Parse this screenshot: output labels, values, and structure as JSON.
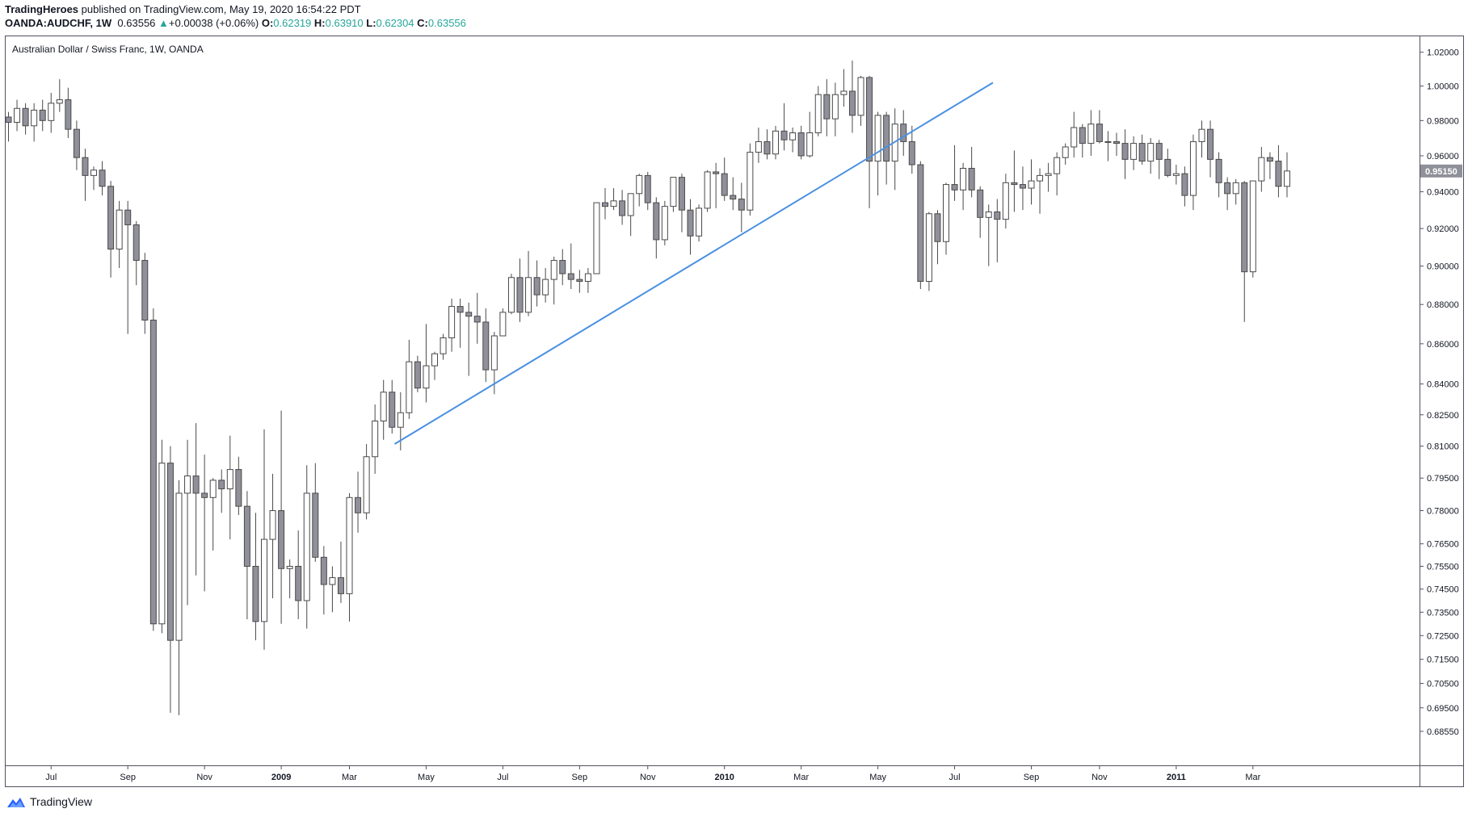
{
  "header": {
    "publisher": "TradingHeroes",
    "published_text": "published on TradingView.com, May 19, 2020 16:54:22 PDT",
    "symbol": "OANDA:AUDCHF, 1W",
    "last": "0.63556",
    "change_arrow": "▲",
    "change": "+0.00038 (+0.06%)",
    "o_label": "O:",
    "o_value": "0.62319",
    "h_label": "H:",
    "h_value": "0.63910",
    "l_label": "L:",
    "l_value": "0.62304",
    "c_label": "C:",
    "c_value": "0.63556"
  },
  "footer": {
    "brand": "TradingView"
  },
  "colors": {
    "up_body": "#ffffff",
    "down_body": "#8f909a",
    "wick": "#4a4a4a",
    "trendline": "#4a90e2",
    "price_tag": "#8f909a",
    "change_up": "#26a69a"
  },
  "chart_data": {
    "type": "candlestick",
    "title": "Australian Dollar / Swiss Franc, 1W, OANDA",
    "ylim": [
      0.672,
      1.03
    ],
    "y_scale": "log",
    "y_ticks": [
      "1.02000",
      "1.00000",
      "0.98000",
      "0.96000",
      "0.94000",
      "0.92000",
      "0.90000",
      "0.88000",
      "0.86000",
      "0.84000",
      "0.82500",
      "0.81000",
      "0.79500",
      "0.78000",
      "0.76500",
      "0.75500",
      "0.74500",
      "0.73500",
      "0.72500",
      "0.71500",
      "0.70500",
      "0.69500",
      "0.68550"
    ],
    "x_ticks": [
      {
        "label": "Jul",
        "index": 5,
        "bold": false
      },
      {
        "label": "Sep",
        "index": 14,
        "bold": false
      },
      {
        "label": "Nov",
        "index": 23,
        "bold": false
      },
      {
        "label": "2009",
        "index": 32,
        "bold": true
      },
      {
        "label": "Mar",
        "index": 40,
        "bold": false
      },
      {
        "label": "May",
        "index": 49,
        "bold": false
      },
      {
        "label": "Jul",
        "index": 58,
        "bold": false
      },
      {
        "label": "Sep",
        "index": 67,
        "bold": false
      },
      {
        "label": "Nov",
        "index": 75,
        "bold": false
      },
      {
        "label": "2010",
        "index": 84,
        "bold": true
      },
      {
        "label": "Mar",
        "index": 93,
        "bold": false
      },
      {
        "label": "May",
        "index": 102,
        "bold": false
      },
      {
        "label": "Jul",
        "index": 111,
        "bold": false
      },
      {
        "label": "Sep",
        "index": 120,
        "bold": false
      },
      {
        "label": "Nov",
        "index": 128,
        "bold": false
      },
      {
        "label": "2011",
        "index": 137,
        "bold": true
      },
      {
        "label": "Mar",
        "index": 146,
        "bold": false
      }
    ],
    "last_price_label": "0.95150",
    "last_price": 0.9515,
    "trendline": {
      "start": {
        "index": 45.3,
        "price": 0.811
      },
      "end": {
        "index": 115.5,
        "price": 1.002
      }
    },
    "candles": [
      [
        0.982,
        0.985,
        0.968,
        0.979
      ],
      [
        0.979,
        0.992,
        0.974,
        0.987
      ],
      [
        0.987,
        0.99,
        0.972,
        0.977
      ],
      [
        0.977,
        0.99,
        0.968,
        0.986
      ],
      [
        0.986,
        0.992,
        0.974,
        0.98
      ],
      [
        0.98,
        0.996,
        0.973,
        0.99
      ],
      [
        0.99,
        1.004,
        0.985,
        0.992
      ],
      [
        0.992,
        0.999,
        0.97,
        0.975
      ],
      [
        0.975,
        0.98,
        0.952,
        0.959
      ],
      [
        0.959,
        0.964,
        0.935,
        0.949
      ],
      [
        0.949,
        0.954,
        0.941,
        0.952
      ],
      [
        0.952,
        0.957,
        0.938,
        0.943
      ],
      [
        0.943,
        0.946,
        0.894,
        0.909
      ],
      [
        0.909,
        0.935,
        0.899,
        0.93
      ],
      [
        0.93,
        0.935,
        0.865,
        0.922
      ],
      [
        0.922,
        0.924,
        0.89,
        0.903
      ],
      [
        0.903,
        0.907,
        0.865,
        0.872
      ],
      [
        0.872,
        0.878,
        0.727,
        0.73
      ],
      [
        0.73,
        0.813,
        0.726,
        0.802
      ],
      [
        0.802,
        0.81,
        0.693,
        0.723
      ],
      [
        0.723,
        0.794,
        0.692,
        0.788
      ],
      [
        0.788,
        0.813,
        0.738,
        0.796
      ],
      [
        0.796,
        0.821,
        0.751,
        0.788
      ],
      [
        0.788,
        0.806,
        0.744,
        0.786
      ],
      [
        0.786,
        0.795,
        0.762,
        0.794
      ],
      [
        0.794,
        0.799,
        0.779,
        0.79
      ],
      [
        0.79,
        0.815,
        0.767,
        0.799
      ],
      [
        0.799,
        0.805,
        0.778,
        0.782
      ],
      [
        0.782,
        0.789,
        0.732,
        0.755
      ],
      [
        0.755,
        0.779,
        0.723,
        0.731
      ],
      [
        0.731,
        0.818,
        0.719,
        0.767
      ],
      [
        0.767,
        0.797,
        0.741,
        0.78
      ],
      [
        0.78,
        0.827,
        0.73,
        0.754
      ],
      [
        0.754,
        0.758,
        0.741,
        0.755
      ],
      [
        0.755,
        0.771,
        0.732,
        0.74
      ],
      [
        0.74,
        0.801,
        0.728,
        0.788
      ],
      [
        0.788,
        0.802,
        0.757,
        0.759
      ],
      [
        0.759,
        0.764,
        0.734,
        0.747
      ],
      [
        0.747,
        0.755,
        0.735,
        0.75
      ],
      [
        0.75,
        0.766,
        0.739,
        0.743
      ],
      [
        0.743,
        0.788,
        0.731,
        0.786
      ],
      [
        0.786,
        0.798,
        0.77,
        0.779
      ],
      [
        0.779,
        0.811,
        0.776,
        0.805
      ],
      [
        0.805,
        0.83,
        0.797,
        0.822
      ],
      [
        0.822,
        0.842,
        0.813,
        0.836
      ],
      [
        0.836,
        0.842,
        0.816,
        0.819
      ],
      [
        0.819,
        0.836,
        0.808,
        0.826
      ],
      [
        0.826,
        0.862,
        0.823,
        0.851
      ],
      [
        0.851,
        0.854,
        0.836,
        0.838
      ],
      [
        0.838,
        0.87,
        0.831,
        0.849
      ],
      [
        0.849,
        0.856,
        0.842,
        0.855
      ],
      [
        0.855,
        0.865,
        0.852,
        0.863
      ],
      [
        0.863,
        0.883,
        0.856,
        0.879
      ],
      [
        0.879,
        0.883,
        0.858,
        0.876
      ],
      [
        0.876,
        0.881,
        0.844,
        0.874
      ],
      [
        0.874,
        0.886,
        0.86,
        0.871
      ],
      [
        0.871,
        0.878,
        0.841,
        0.847
      ],
      [
        0.847,
        0.866,
        0.835,
        0.864
      ],
      [
        0.864,
        0.878,
        0.864,
        0.876
      ],
      [
        0.876,
        0.896,
        0.875,
        0.894
      ],
      [
        0.894,
        0.904,
        0.871,
        0.876
      ],
      [
        0.876,
        0.908,
        0.874,
        0.894
      ],
      [
        0.894,
        0.903,
        0.879,
        0.885
      ],
      [
        0.885,
        0.899,
        0.881,
        0.893
      ],
      [
        0.893,
        0.905,
        0.88,
        0.903
      ],
      [
        0.903,
        0.909,
        0.89,
        0.896
      ],
      [
        0.896,
        0.912,
        0.888,
        0.893
      ],
      [
        0.893,
        0.898,
        0.886,
        0.892
      ],
      [
        0.892,
        0.899,
        0.886,
        0.896
      ],
      [
        0.896,
        0.934,
        0.896,
        0.934
      ],
      [
        0.934,
        0.942,
        0.925,
        0.932
      ],
      [
        0.932,
        0.942,
        0.93,
        0.935
      ],
      [
        0.935,
        0.941,
        0.922,
        0.927
      ],
      [
        0.927,
        0.939,
        0.916,
        0.939
      ],
      [
        0.939,
        0.95,
        0.932,
        0.949
      ],
      [
        0.949,
        0.951,
        0.93,
        0.934
      ],
      [
        0.934,
        0.937,
        0.904,
        0.914
      ],
      [
        0.914,
        0.935,
        0.911,
        0.932
      ],
      [
        0.932,
        0.948,
        0.929,
        0.948
      ],
      [
        0.948,
        0.95,
        0.918,
        0.93
      ],
      [
        0.93,
        0.936,
        0.906,
        0.916
      ],
      [
        0.916,
        0.933,
        0.913,
        0.931
      ],
      [
        0.931,
        0.952,
        0.929,
        0.951
      ],
      [
        0.951,
        0.956,
        0.931,
        0.95
      ],
      [
        0.95,
        0.959,
        0.935,
        0.938
      ],
      [
        0.938,
        0.948,
        0.93,
        0.936
      ],
      [
        0.936,
        0.945,
        0.918,
        0.93
      ],
      [
        0.93,
        0.967,
        0.927,
        0.962
      ],
      [
        0.962,
        0.976,
        0.956,
        0.968
      ],
      [
        0.968,
        0.975,
        0.958,
        0.961
      ],
      [
        0.961,
        0.977,
        0.958,
        0.974
      ],
      [
        0.974,
        0.99,
        0.963,
        0.969
      ],
      [
        0.969,
        0.976,
        0.962,
        0.973
      ],
      [
        0.973,
        0.977,
        0.958,
        0.96
      ],
      [
        0.96,
        0.985,
        0.959,
        0.973
      ],
      [
        0.973,
        1.0,
        0.971,
        0.995
      ],
      [
        0.995,
        1.004,
        0.971,
        0.981
      ],
      [
        0.981,
        1.002,
        0.971,
        0.995
      ],
      [
        0.995,
        1.01,
        0.988,
        0.997
      ],
      [
        0.997,
        1.015,
        0.973,
        0.983
      ],
      [
        0.983,
        1.006,
        0.977,
        1.005
      ],
      [
        1.005,
        1.006,
        0.931,
        0.957
      ],
      [
        0.957,
        0.985,
        0.938,
        0.983
      ],
      [
        0.983,
        0.985,
        0.944,
        0.957
      ],
      [
        0.957,
        0.987,
        0.941,
        0.978
      ],
      [
        0.978,
        0.986,
        0.96,
        0.968
      ],
      [
        0.968,
        0.977,
        0.95,
        0.955
      ],
      [
        0.955,
        0.957,
        0.888,
        0.892
      ],
      [
        0.892,
        0.929,
        0.887,
        0.928
      ],
      [
        0.928,
        0.93,
        0.901,
        0.913
      ],
      [
        0.913,
        0.945,
        0.906,
        0.944
      ],
      [
        0.944,
        0.966,
        0.935,
        0.941
      ],
      [
        0.941,
        0.956,
        0.93,
        0.953
      ],
      [
        0.953,
        0.965,
        0.937,
        0.941
      ],
      [
        0.941,
        0.943,
        0.915,
        0.926
      ],
      [
        0.926,
        0.933,
        0.9,
        0.929
      ],
      [
        0.929,
        0.936,
        0.902,
        0.925
      ],
      [
        0.925,
        0.95,
        0.92,
        0.945
      ],
      [
        0.945,
        0.963,
        0.929,
        0.944
      ],
      [
        0.944,
        0.954,
        0.93,
        0.942
      ],
      [
        0.942,
        0.958,
        0.933,
        0.946
      ],
      [
        0.946,
        0.953,
        0.928,
        0.949
      ],
      [
        0.949,
        0.956,
        0.94,
        0.95
      ],
      [
        0.95,
        0.962,
        0.938,
        0.959
      ],
      [
        0.959,
        0.967,
        0.955,
        0.965
      ],
      [
        0.965,
        0.985,
        0.959,
        0.976
      ],
      [
        0.976,
        0.978,
        0.959,
        0.967
      ],
      [
        0.967,
        0.986,
        0.96,
        0.978
      ],
      [
        0.978,
        0.986,
        0.967,
        0.968
      ],
      [
        0.968,
        0.974,
        0.957,
        0.968
      ],
      [
        0.968,
        0.973,
        0.96,
        0.967
      ],
      [
        0.967,
        0.975,
        0.947,
        0.958
      ],
      [
        0.958,
        0.971,
        0.952,
        0.967
      ],
      [
        0.967,
        0.972,
        0.955,
        0.957
      ],
      [
        0.957,
        0.97,
        0.95,
        0.967
      ],
      [
        0.967,
        0.969,
        0.947,
        0.958
      ],
      [
        0.958,
        0.964,
        0.948,
        0.949
      ],
      [
        0.949,
        0.955,
        0.944,
        0.95
      ],
      [
        0.95,
        0.954,
        0.932,
        0.938
      ],
      [
        0.938,
        0.972,
        0.93,
        0.968
      ],
      [
        0.968,
        0.98,
        0.959,
        0.975
      ],
      [
        0.975,
        0.98,
        0.948,
        0.958
      ],
      [
        0.958,
        0.962,
        0.937,
        0.945
      ],
      [
        0.945,
        0.948,
        0.93,
        0.939
      ],
      [
        0.939,
        0.947,
        0.933,
        0.945
      ],
      [
        0.945,
        0.946,
        0.871,
        0.897
      ],
      [
        0.897,
        0.946,
        0.894,
        0.946
      ],
      [
        0.946,
        0.965,
        0.94,
        0.959
      ],
      [
        0.959,
        0.962,
        0.947,
        0.957
      ],
      [
        0.957,
        0.966,
        0.937,
        0.943
      ],
      [
        0.943,
        0.962,
        0.937,
        0.9515
      ]
    ]
  }
}
